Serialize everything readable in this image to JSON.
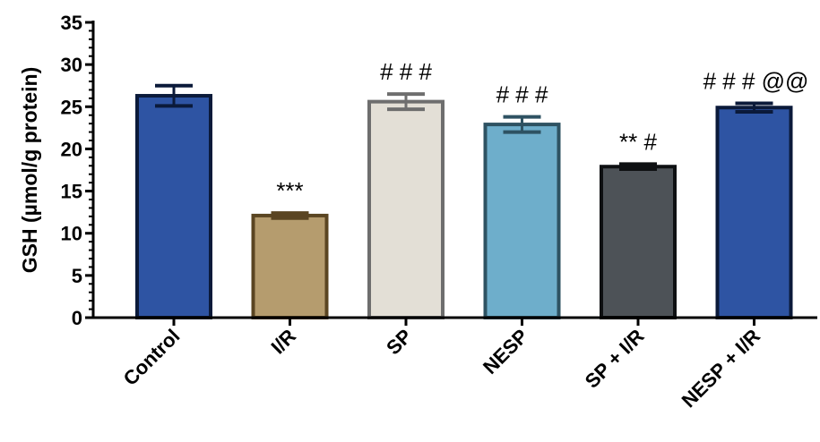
{
  "chart_data": {
    "type": "bar",
    "title": "",
    "xlabel": "",
    "ylabel": "GSH (µmol/g protein)",
    "ylim": [
      0,
      35
    ],
    "yticks": [
      "0",
      "5",
      "10",
      "15",
      "20",
      "25",
      "30",
      "35"
    ],
    "categories": [
      "Control",
      "I/R",
      "SP",
      "NESP",
      "SP + I/R",
      "NESP + I/R"
    ],
    "values": [
      26.3,
      12.1,
      25.6,
      22.9,
      17.9,
      24.9
    ],
    "errors": [
      1.2,
      0.3,
      0.9,
      0.9,
      0.3,
      0.5
    ],
    "annotations": [
      "",
      "***",
      "# # #",
      "# # #",
      "** #",
      "# # # @@"
    ],
    "bar_colors": [
      "#2E54A3",
      "#B59C6E",
      "#E3DFD6",
      "#6EAECB",
      "#4D5257",
      "#2E54A3"
    ],
    "edge_colors": [
      "#0B1A3A",
      "#5A4522",
      "#6E6E6E",
      "#2E5262",
      "#0E1012",
      "#0B1A3A"
    ],
    "grid": false,
    "legend": "none"
  }
}
